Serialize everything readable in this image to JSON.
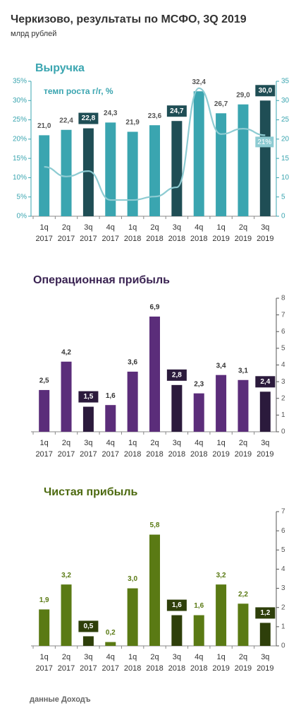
{
  "title": "Черкизово, результаты по МСФО, 3Q 2019",
  "subtitle": "млрд рублей",
  "source": "данные Доходъ",
  "chart_data": [
    {
      "type": "bar",
      "title": "Выручка",
      "categories": [
        [
          "1q",
          "2017"
        ],
        [
          "2q",
          "2017"
        ],
        [
          "3q",
          "2017"
        ],
        [
          "4q",
          "2017"
        ],
        [
          "1q",
          "2018"
        ],
        [
          "2q",
          "2018"
        ],
        [
          "3q",
          "2018"
        ],
        [
          "4q",
          "2018"
        ],
        [
          "1q",
          "2019"
        ],
        [
          "2q",
          "2019"
        ],
        [
          "3q",
          "2019"
        ]
      ],
      "series": [
        {
          "values": [
            21.0,
            22.4,
            22.8,
            24.3,
            21.9,
            23.6,
            24.7,
            32.4,
            26.7,
            29.0,
            30.0
          ],
          "value_labels": [
            "21,0",
            "22,4",
            "22,8",
            "24,3",
            "21,9",
            "23,6",
            "24,7",
            "32,4",
            "26,7",
            "29,0",
            "30,0"
          ],
          "color": "#3aa5b0",
          "highlight_color": "#1f4e55",
          "highlighted": [
            2,
            6,
            10
          ]
        },
        {
          "type": "line",
          "name": "темп роста г/г, %",
          "axis": "y2",
          "color": "#8dcbd2",
          "values": [
            12.8,
            10.3,
            11.7,
            4.2,
            4.2,
            5.1,
            7.5,
            33.2,
            21.3,
            22.7,
            21
          ],
          "value_labels": [
            null,
            null,
            null,
            null,
            null,
            null,
            null,
            null,
            null,
            null,
            "21%"
          ]
        }
      ],
      "ylim": [
        0,
        35
      ],
      "yticks": [
        0,
        5,
        10,
        15,
        20,
        25,
        30,
        35
      ],
      "y2lim": [
        0,
        35
      ],
      "y2ticks": [
        {
          "value": 0,
          "label": "0%"
        },
        {
          "value": 5,
          "label": "5%"
        },
        {
          "value": 10,
          "label": "10%"
        },
        {
          "value": 15,
          "label": "15%"
        },
        {
          "value": 20,
          "label": "20%"
        },
        {
          "value": 25,
          "label": "25%"
        },
        {
          "value": 30,
          "label": "30%"
        },
        {
          "value": 35,
          "label": "35%"
        }
      ],
      "title_color": "#3aa5b0",
      "axis_color": "#3aa5b0",
      "label_color": "#555555"
    },
    {
      "type": "bar",
      "title": "Операционная прибыль",
      "categories": [
        [
          "1q",
          "2017"
        ],
        [
          "2q",
          "2017"
        ],
        [
          "3q",
          "2017"
        ],
        [
          "4q",
          "2017"
        ],
        [
          "1q",
          "2018"
        ],
        [
          "2q",
          "2018"
        ],
        [
          "3q",
          "2018"
        ],
        [
          "4q",
          "2018"
        ],
        [
          "1q",
          "2019"
        ],
        [
          "2q",
          "2019"
        ],
        [
          "3q",
          "2019"
        ]
      ],
      "series": [
        {
          "values": [
            2.5,
            4.2,
            1.5,
            1.6,
            3.6,
            6.9,
            2.8,
            2.3,
            3.4,
            3.1,
            2.4
          ],
          "value_labels": [
            "2,5",
            "4,2",
            "1,5",
            "1,6",
            "3,6",
            "6,9",
            "2,8",
            "2,3",
            "3,4",
            "3,1",
            "2,4"
          ],
          "color": "#5b2d7a",
          "highlight_color": "#2b1a3c",
          "highlighted": [
            2,
            6,
            10
          ]
        }
      ],
      "ylim": [
        0,
        8
      ],
      "yticks": [
        0,
        1,
        2,
        3,
        4,
        5,
        6,
        7,
        8
      ],
      "title_color": "#3a2352",
      "axis_color": "#555555",
      "label_color": "#333333"
    },
    {
      "type": "bar",
      "title": "Чистая прибыль",
      "categories": [
        [
          "1q",
          "2017"
        ],
        [
          "2q",
          "2017"
        ],
        [
          "3q",
          "2017"
        ],
        [
          "4q",
          "2017"
        ],
        [
          "1q",
          "2018"
        ],
        [
          "2q",
          "2018"
        ],
        [
          "3q",
          "2018"
        ],
        [
          "4q",
          "2018"
        ],
        [
          "1q",
          "2019"
        ],
        [
          "2q",
          "2019"
        ],
        [
          "3q",
          "2019"
        ]
      ],
      "series": [
        {
          "values": [
            1.9,
            3.2,
            0.5,
            0.2,
            3.0,
            5.8,
            1.6,
            1.6,
            3.2,
            2.2,
            1.2
          ],
          "value_labels": [
            "1,9",
            "3,2",
            "0,5",
            "0,2",
            "3,0",
            "5,8",
            "1,6",
            "1,6",
            "3,2",
            "2,2",
            "1,2"
          ],
          "color": "#5a7a14",
          "highlight_color": "#2e3f0a",
          "highlighted": [
            2,
            6,
            10
          ]
        }
      ],
      "ylim": [
        0,
        7
      ],
      "yticks": [
        0,
        1,
        2,
        3,
        4,
        5,
        6,
        7
      ],
      "title_color": "#4d6a10",
      "axis_color": "#555555",
      "label_color": "#5a7a14"
    }
  ]
}
